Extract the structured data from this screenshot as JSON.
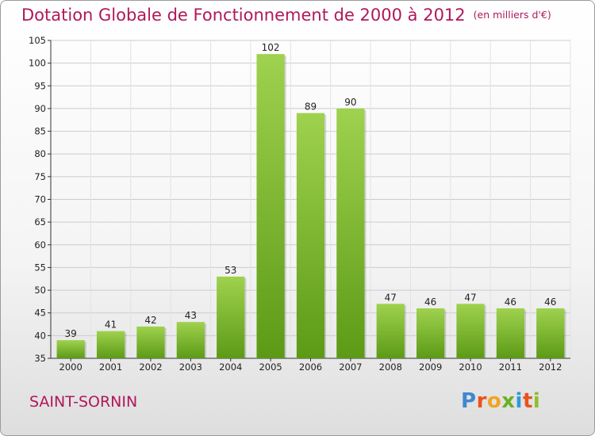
{
  "chart_data": {
    "type": "bar",
    "title": "Dotation Globale de Fonctionnement de 2000 à 2012",
    "unit_note": "(en milliers d'€)",
    "categories": [
      "2000",
      "2001",
      "2002",
      "2003",
      "2004",
      "2005",
      "2006",
      "2007",
      "2008",
      "2009",
      "2010",
      "2011",
      "2012"
    ],
    "values": [
      39,
      41,
      42,
      43,
      53,
      102,
      89,
      90,
      47,
      46,
      47,
      46,
      46
    ],
    "ylim": [
      35,
      105
    ],
    "yticks": [
      35,
      40,
      45,
      50,
      55,
      60,
      65,
      70,
      75,
      80,
      85,
      90,
      95,
      100,
      105
    ],
    "grid": true,
    "legend": "none",
    "colors": {
      "bar_light": "#9fd24e",
      "bar_dark": "#5c9a16",
      "grid": "#cccccc"
    }
  },
  "commune": "SAINT-SORNIN",
  "brand": {
    "letters": [
      "P",
      "r",
      "o",
      "x",
      "i",
      "t",
      "i"
    ],
    "colors": [
      "#3f88d0",
      "#e8541d",
      "#f0a422",
      "#6ab023",
      "#2d9bd6",
      "#e8541d",
      "#8fbf2a"
    ]
  }
}
